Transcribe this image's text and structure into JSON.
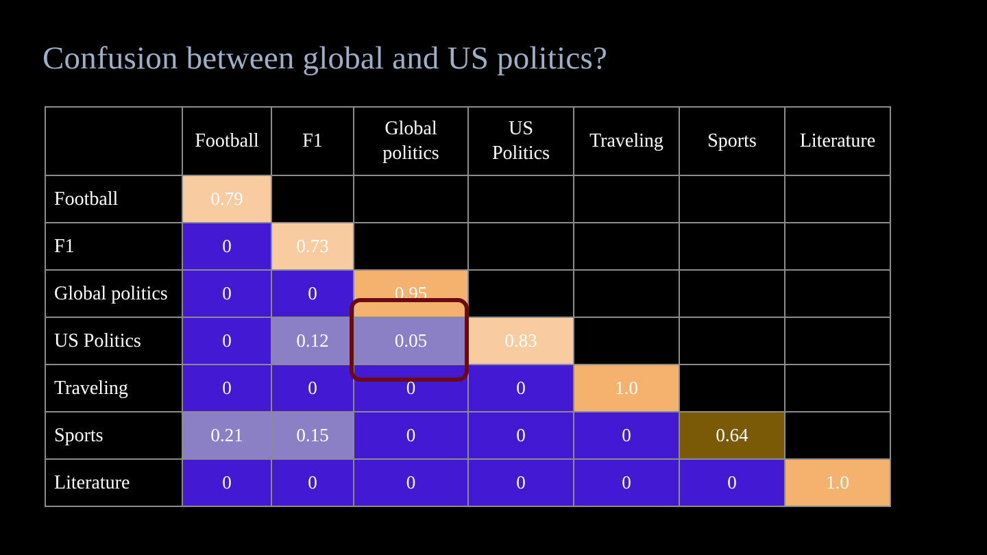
{
  "slide": {
    "title": "Confusion between global and US politics?"
  },
  "table": {
    "columns": [
      "Football",
      "F1",
      "Global politics",
      "US Politics",
      "Traveling",
      "Sports",
      "Literature"
    ],
    "col_widths": [
      200,
      130,
      120,
      167,
      154,
      154,
      154,
      154
    ],
    "rows": [
      {
        "label": "Football",
        "cells": [
          "0.79",
          "",
          "",
          "",
          "",
          "",
          ""
        ]
      },
      {
        "label": "F1",
        "cells": [
          "0",
          "0.73",
          "",
          "",
          "",
          "",
          ""
        ]
      },
      {
        "label": "Global politics",
        "cells": [
          "0",
          "0",
          "0.95",
          "",
          "",
          "",
          ""
        ]
      },
      {
        "label": "US Politics",
        "cells": [
          "0",
          "0.12",
          "0.05",
          "0.83",
          "",
          "",
          ""
        ]
      },
      {
        "label": "Traveling",
        "cells": [
          "0",
          "0",
          "0",
          "0",
          "1.0",
          "",
          ""
        ]
      },
      {
        "label": "Sports",
        "cells": [
          "0.21",
          "0.15",
          "0",
          "0",
          "0",
          "0.64",
          ""
        ]
      },
      {
        "label": "Literature",
        "cells": [
          "0",
          "0",
          "0",
          "0",
          "0",
          "0",
          "1.0"
        ]
      }
    ]
  },
  "colors": {
    "background": "#000000",
    "title": "#9eb0c8",
    "zero_cell": "#4419d4",
    "small_value_cell": "#8b7fc5",
    "diagonal_light": "#f8cba0",
    "diagonal_strong": "#f5b26e",
    "diagonal_olive": "#7a5a06",
    "highlight_border": "#6b0a12"
  },
  "highlight": {
    "target": "US Politics / Global politics cell"
  }
}
